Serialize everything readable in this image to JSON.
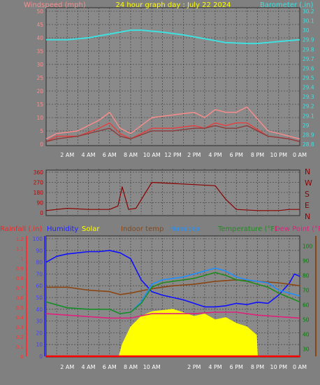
{
  "chart_data": [
    {
      "type": "line",
      "title": "24 hour graph day : July 22 2024",
      "xticks": [
        "2 AM",
        "4 AM",
        "6 AM",
        "8 AM",
        "10 AM",
        "12 PM",
        "2 PM",
        "4 PM",
        "6 PM",
        "8 PM",
        "10 PM",
        "0 AM"
      ],
      "left_axis": {
        "label": "Windspeed (mph)",
        "ticks": [
          0,
          5,
          10,
          15,
          20,
          25,
          30,
          35,
          40,
          45,
          50
        ],
        "range": [
          0,
          50
        ],
        "color": "#ff8c8c"
      },
      "right_axis": {
        "label": "Barometer (.in)",
        "ticks": [
          "28.8",
          "28.9",
          "29",
          "29.1",
          "29.2",
          "29.3",
          "29.4",
          "29.5",
          "29.6",
          "29.7",
          "29.8",
          "29.9",
          "30",
          "30.1",
          "30.2"
        ],
        "range": [
          28.8,
          30.2
        ],
        "color": "#40e0e0"
      },
      "series": [
        {
          "name": "Barometer (.in)",
          "color": "#40e0e0",
          "x_hours": [
            0,
            2,
            4,
            6,
            8,
            9,
            11,
            13,
            15,
            17,
            19,
            20,
            22,
            24
          ],
          "values": [
            29.9,
            29.9,
            29.92,
            29.96,
            30.0,
            30.0,
            29.98,
            29.95,
            29.91,
            29.87,
            29.86,
            29.86,
            29.88,
            29.9
          ]
        },
        {
          "name": "gust",
          "color": "#ff8c8c",
          "x_hours": [
            0,
            1,
            3,
            5,
            6,
            7,
            8,
            10,
            12,
            14,
            15,
            16,
            17,
            18,
            19,
            21,
            23,
            24
          ],
          "values": [
            2,
            4,
            5,
            9,
            12,
            6,
            4,
            10,
            11,
            12,
            10,
            13,
            12,
            12,
            14,
            5,
            3,
            2
          ]
        },
        {
          "name": "wind",
          "color": "#e83e3e",
          "x_hours": [
            0,
            1,
            3,
            5,
            6,
            7,
            8,
            10,
            12,
            14,
            15,
            16,
            17,
            18,
            19,
            21,
            23,
            24
          ],
          "values": [
            1,
            3,
            3,
            6,
            8,
            4,
            2,
            6,
            6,
            7,
            6,
            8,
            7,
            8,
            8,
            3,
            2,
            1
          ]
        },
        {
          "name": "average",
          "color": "#8c3c3c",
          "x_hours": [
            0,
            1,
            3,
            5,
            6,
            7,
            8,
            10,
            12,
            14,
            15,
            16,
            17,
            18,
            19,
            21,
            23,
            24
          ],
          "values": [
            1,
            2,
            3,
            5,
            6,
            3,
            2,
            5,
            5,
            6,
            6,
            7,
            6,
            6,
            7,
            3,
            2,
            1
          ]
        }
      ]
    },
    {
      "type": "line",
      "left_axis": {
        "ticks": [
          0,
          90,
          180,
          270,
          360
        ],
        "range": [
          0,
          360
        ],
        "color": "#c00000"
      },
      "right_labels": [
        "N",
        "W",
        "S",
        "E",
        "N"
      ],
      "series": [
        {
          "name": "wind direction",
          "color": "#8b0000",
          "x_hours": [
            0,
            2,
            4,
            6,
            6.8,
            7.2,
            7.8,
            8.5,
            10,
            12,
            14,
            16,
            17,
            18,
            20,
            22,
            23,
            24
          ],
          "values": [
            20,
            40,
            30,
            30,
            60,
            230,
            30,
            40,
            270,
            260,
            250,
            240,
            120,
            30,
            20,
            20,
            30,
            30
          ]
        }
      ]
    },
    {
      "type": "line",
      "legend": [
        "Rainfall (.in)",
        "Humidity",
        "Solar",
        "Indoor temp",
        "Humidex",
        "Temperature (°F)",
        "Dew Point (°F)"
      ],
      "rain_axis": {
        "ticks": [
          "0",
          "0.1",
          "0.2",
          "0.3",
          "0.4",
          "0.5",
          "0.6",
          "0.7",
          "0.8",
          "0.9",
          "1",
          "1.1",
          "1.2"
        ],
        "range": [
          0,
          1.2
        ],
        "color": "#ff3030"
      },
      "humidity_axis": {
        "ticks": [
          0,
          10,
          20,
          30,
          40,
          50,
          60,
          70,
          80,
          90,
          100
        ],
        "range": [
          0,
          100
        ],
        "color": "#4040ff"
      },
      "temp_axis": {
        "ticks": [
          30,
          40,
          50,
          60,
          70,
          80,
          90,
          100
        ],
        "range": [
          25,
          105
        ],
        "color": "#008000"
      },
      "series": [
        {
          "name": "Humidity",
          "color": "#1010ff",
          "x_hours": [
            0,
            1,
            2,
            3,
            4,
            5,
            6,
            7,
            8,
            9,
            10,
            11,
            12,
            13,
            14,
            15,
            16,
            17,
            18,
            19,
            20,
            21,
            22,
            23,
            23.5,
            24
          ],
          "values": [
            80,
            85,
            87,
            88,
            89,
            89,
            90,
            88,
            83,
            65,
            55,
            52,
            50,
            48,
            45,
            42,
            42,
            43,
            45,
            44,
            46,
            45,
            52,
            62,
            70,
            68
          ]
        },
        {
          "name": "Solar",
          "color": "#ffff00",
          "x_hours": [
            6.9,
            7.2,
            8,
            9,
            10,
            11,
            12,
            13,
            14,
            15,
            16,
            17,
            18,
            19,
            19.9,
            20
          ],
          "values": [
            0,
            10,
            25,
            34,
            38,
            39,
            40,
            37,
            34,
            36,
            31,
            33,
            28,
            25,
            18,
            0
          ]
        },
        {
          "name": "Indoor temp",
          "color": "#8b4513",
          "x_hours": [
            0,
            2,
            4,
            6,
            7,
            8,
            10,
            12,
            14,
            16,
            18,
            20,
            22,
            24
          ],
          "values": [
            72,
            72,
            70,
            69,
            67,
            68,
            71,
            73,
            74,
            76,
            77,
            76,
            75,
            73
          ]
        },
        {
          "name": "Humidex",
          "color": "#1e90ff",
          "x_hours": [
            0,
            2,
            4,
            6,
            7,
            8,
            9,
            10,
            11,
            12,
            13,
            14,
            15,
            16,
            17,
            18,
            19,
            20,
            21,
            22,
            23,
            24
          ],
          "values": [
            62,
            58,
            57,
            57,
            54,
            55,
            62,
            74,
            77,
            78,
            79,
            81,
            83,
            85,
            83,
            79,
            77,
            76,
            75,
            70,
            68,
            66
          ]
        },
        {
          "name": "Temperature (°F)",
          "color": "#1f8c1f",
          "x_hours": [
            0,
            2,
            4,
            6,
            7,
            8,
            9,
            10,
            11,
            12,
            13,
            14,
            15,
            16,
            17,
            18,
            19,
            20,
            21,
            22,
            23,
            24
          ],
          "values": [
            62,
            58,
            57,
            57,
            54,
            55,
            61,
            72,
            75,
            76,
            77,
            78,
            80,
            82,
            80,
            77,
            76,
            74,
            72,
            68,
            65,
            62
          ]
        },
        {
          "name": "Dew Point (°F)",
          "color": "#e0207c",
          "x_hours": [
            0,
            2,
            4,
            6,
            8,
            10,
            12,
            14,
            16,
            18,
            20,
            22,
            24
          ],
          "values": [
            54,
            53,
            52,
            51,
            51,
            54,
            54,
            54,
            55,
            55,
            53,
            52,
            51
          ]
        },
        {
          "name": "Rainfall (.in)",
          "color": "#ff0000",
          "x_hours": [
            0,
            24
          ],
          "values": [
            0,
            0
          ]
        }
      ]
    }
  ]
}
